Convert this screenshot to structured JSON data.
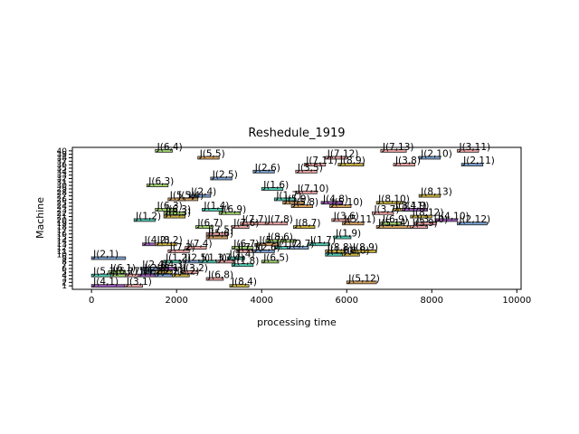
{
  "chart_data": {
    "type": "gantt",
    "title": "Reshedule_1919",
    "xlabel": "processing time",
    "ylabel": "Machine",
    "xlim": [
      -450,
      10100
    ],
    "ylim": [
      0,
      41
    ],
    "xticks": [
      0,
      2000,
      4000,
      6000,
      8000,
      10000
    ],
    "xtick_labels": [
      "0",
      "2000",
      "4000",
      "6000",
      "8000",
      "10000"
    ],
    "yticks": [
      1,
      2,
      3,
      4,
      5,
      6,
      7,
      8,
      9,
      10,
      11,
      12,
      13,
      14,
      15,
      16,
      17,
      18,
      19,
      20,
      21,
      22,
      23,
      24,
      25,
      26,
      27,
      28,
      29,
      30,
      31,
      32,
      33,
      34,
      35,
      36,
      37,
      38,
      39,
      40
    ],
    "ytick_labels": [
      "1",
      "2",
      "3",
      "4",
      "5",
      "6",
      "7",
      "8",
      "9",
      "10",
      "11",
      "12",
      "13",
      "14",
      "15",
      "16",
      "17",
      "18",
      "19",
      "20",
      "21",
      "22",
      "23",
      "24",
      "25",
      "26",
      "27",
      "28",
      "29",
      "30",
      "31",
      "32",
      "33",
      "34",
      "35",
      "36",
      "37",
      "38",
      "39",
      "40"
    ],
    "grid": false,
    "tasks": [
      {
        "label": "J(4,1)",
        "machine": 1,
        "start": 0,
        "end": 780,
        "color": "#9b59b6"
      },
      {
        "label": "J(3,1)",
        "machine": 1,
        "start": 780,
        "end": 1200,
        "color": "#e8a0a0"
      },
      {
        "label": "J(8,4)",
        "machine": 1,
        "start": 3250,
        "end": 3700,
        "color": "#c8b040"
      },
      {
        "label": "J(5,12)",
        "machine": 2,
        "start": 6000,
        "end": 6700,
        "color": "#d4a060"
      },
      {
        "label": "J(6,8)",
        "machine": 3,
        "start": 2700,
        "end": 3100,
        "color": "#e8a0a0"
      },
      {
        "label": "J(5,1)",
        "machine": 4,
        "start": 0,
        "end": 450,
        "color": "#50c8b0"
      },
      {
        "label": "J(6,2)",
        "machine": 4,
        "start": 450,
        "end": 800,
        "color": "#a0d070"
      },
      {
        "label": "J(7,1)",
        "machine": 4,
        "start": 800,
        "end": 1100,
        "color": "#e8a0a0"
      },
      {
        "label": "J(4,2)",
        "machine": 4,
        "start": 1100,
        "end": 1500,
        "color": "#9b59b6"
      },
      {
        "label": "J(2,2)",
        "machine": 4,
        "start": 1500,
        "end": 1900,
        "color": "#7aa0d0"
      },
      {
        "label": "J(8,2)",
        "machine": 4,
        "start": 1900,
        "end": 2300,
        "color": "#c8b040"
      },
      {
        "label": "J(6,1)",
        "machine": 5,
        "start": 400,
        "end": 800,
        "color": "#a0d070"
      },
      {
        "label": "J(2,3)",
        "machine": 5,
        "start": 1200,
        "end": 1600,
        "color": "#7aa0d0"
      },
      {
        "label": "J(8,1)",
        "machine": 5,
        "start": 1500,
        "end": 1900,
        "color": "#c8b040"
      },
      {
        "label": "J(3,2)",
        "machine": 5,
        "start": 2100,
        "end": 2500,
        "color": "#e8a0a0"
      },
      {
        "label": "J(2,4)",
        "machine": 6,
        "start": 1150,
        "end": 1550,
        "color": "#7aa0d0"
      },
      {
        "label": "J(4,3)",
        "machine": 6,
        "start": 1600,
        "end": 2000,
        "color": "#9b59b6"
      },
      {
        "label": "J(1,8)",
        "machine": 7,
        "start": 3300,
        "end": 3800,
        "color": "#50c8b0"
      },
      {
        "label": "J(1,2)",
        "machine": 8,
        "start": 1700,
        "end": 2100,
        "color": "#50c8b0"
      },
      {
        "label": "J(2,5)",
        "machine": 8,
        "start": 2150,
        "end": 2550,
        "color": "#7aa0d0"
      },
      {
        "label": "J(1,3)",
        "machine": 8,
        "start": 2550,
        "end": 2950,
        "color": "#50c8b0"
      },
      {
        "label": "J(7,4)",
        "machine": 8,
        "start": 2950,
        "end": 3350,
        "color": "#e8a0a0"
      },
      {
        "label": "J(6,5)",
        "machine": 8,
        "start": 4000,
        "end": 4400,
        "color": "#a0d070"
      },
      {
        "label": "J(2,1)",
        "machine": 9,
        "start": 0,
        "end": 800,
        "color": "#7aa0d0"
      },
      {
        "label": "J(1,4)",
        "machine": 9,
        "start": 3200,
        "end": 3600,
        "color": "#50c8b0"
      },
      {
        "label": "J(1,6)",
        "machine": 10,
        "start": 5500,
        "end": 5900,
        "color": "#50c8b0"
      },
      {
        "label": "J(8,8)",
        "machine": 10,
        "start": 5900,
        "end": 6300,
        "color": "#c8b040"
      },
      {
        "label": "J(7,2)",
        "machine": 11,
        "start": 1800,
        "end": 2300,
        "color": "#e8a0a0"
      },
      {
        "label": "J(7,5)",
        "machine": 11,
        "start": 3400,
        "end": 3800,
        "color": "#e8a0a0"
      },
      {
        "label": "J(2,6)",
        "machine": 11,
        "start": 3800,
        "end": 4300,
        "color": "#7aa0d0"
      },
      {
        "label": "J(8,8)",
        "machine": 11,
        "start": 5500,
        "end": 5950,
        "color": "#c8b040"
      },
      {
        "label": "J(8,9)",
        "machine": 11,
        "start": 6100,
        "end": 6700,
        "color": "#c8b040"
      },
      {
        "label": "J(7,4)",
        "machine": 12,
        "start": 2200,
        "end": 2700,
        "color": "#e8a0a0"
      },
      {
        "label": "J(6,7)",
        "machine": 12,
        "start": 3300,
        "end": 3800,
        "color": "#a0d070"
      },
      {
        "label": "J(1,7)",
        "machine": 12,
        "start": 4300,
        "end": 4800,
        "color": "#50c8b0"
      },
      {
        "label": "J(2,7)",
        "machine": 12,
        "start": 4600,
        "end": 5100,
        "color": "#7aa0d0"
      },
      {
        "label": "J(4,2)",
        "machine": 13,
        "start": 1200,
        "end": 1700,
        "color": "#9b59b6"
      },
      {
        "label": "J(8,2)",
        "machine": 13,
        "start": 1500,
        "end": 2000,
        "color": "#c8b040"
      },
      {
        "label": "J(5,7)",
        "machine": 13,
        "start": 3900,
        "end": 4400,
        "color": "#d4a060"
      },
      {
        "label": "J(1,7)",
        "machine": 13,
        "start": 5100,
        "end": 5600,
        "color": "#50c8b0"
      },
      {
        "label": "J(8,6)",
        "machine": 14,
        "start": 4100,
        "end": 4800,
        "color": "#a0d070"
      },
      {
        "label": "J(5,6)",
        "machine": 15,
        "start": 2700,
        "end": 3200,
        "color": "#d4a060"
      },
      {
        "label": "J(1,9)",
        "machine": 15,
        "start": 5700,
        "end": 6100,
        "color": "#50c8b0"
      },
      {
        "label": "J(7,5)",
        "machine": 16,
        "start": 2700,
        "end": 3200,
        "color": "#e8a0a0"
      },
      {
        "label": "J(6,7)",
        "machine": 18,
        "start": 2450,
        "end": 2850,
        "color": "#a0d070"
      },
      {
        "label": "J(7,6)",
        "machine": 18,
        "start": 3300,
        "end": 3700,
        "color": "#e8a0a0"
      },
      {
        "label": "J(8,7)",
        "machine": 18,
        "start": 4750,
        "end": 5250,
        "color": "#c8b040"
      },
      {
        "label": "J(5,14)",
        "machine": 18,
        "start": 6700,
        "end": 7500,
        "color": "#d4a060"
      },
      {
        "label": "J(3,9)",
        "machine": 18,
        "start": 7500,
        "end": 7900,
        "color": "#e8a0a0"
      },
      {
        "label": "J(7,7)",
        "machine": 19,
        "start": 3500,
        "end": 4100,
        "color": "#e8a0a0"
      },
      {
        "label": "J(7,8)",
        "machine": 19,
        "start": 4100,
        "end": 4600,
        "color": "#e8a0a0"
      },
      {
        "label": "J(5,11)",
        "machine": 19,
        "start": 5900,
        "end": 6400,
        "color": "#d4a060"
      },
      {
        "label": "J(6,9)",
        "machine": 19,
        "start": 6800,
        "end": 7300,
        "color": "#a0d070"
      },
      {
        "label": "J(3,10)",
        "machine": 19,
        "start": 7600,
        "end": 8100,
        "color": "#e8a0a0"
      },
      {
        "label": "J(2,12)",
        "machine": 19,
        "start": 8600,
        "end": 9300,
        "color": "#7aa0d0"
      },
      {
        "label": "J(1,2)",
        "machine": 20,
        "start": 1000,
        "end": 1500,
        "color": "#50c8b0"
      },
      {
        "label": "J(3,6)",
        "machine": 20,
        "start": 5650,
        "end": 6100,
        "color": "#e8a0a0"
      },
      {
        "label": "J(4,10)",
        "machine": 20,
        "start": 8100,
        "end": 8600,
        "color": "#9b59b6"
      },
      {
        "label": "J(8,3)",
        "machine": 21,
        "start": 1700,
        "end": 2200,
        "color": "#c8b040"
      },
      {
        "label": "J(8,12)",
        "machine": 21,
        "start": 7500,
        "end": 8000,
        "color": "#c8b040"
      },
      {
        "label": "J(6,3)",
        "machine": 22,
        "start": 1700,
        "end": 2200,
        "color": "#a0d070"
      },
      {
        "label": "J(6,9)",
        "machine": 22,
        "start": 3000,
        "end": 3500,
        "color": "#a0d070"
      },
      {
        "label": "J(3,7)",
        "machine": 22,
        "start": 6600,
        "end": 7100,
        "color": "#e8a0a0"
      },
      {
        "label": "J(6,3)",
        "machine": 23,
        "start": 1500,
        "end": 2000,
        "color": "#a0d070"
      },
      {
        "label": "J(1,4)",
        "machine": 23,
        "start": 2600,
        "end": 3100,
        "color": "#50c8b0"
      },
      {
        "label": "J(8,11)",
        "machine": 23,
        "start": 7100,
        "end": 7600,
        "color": "#c8b040"
      },
      {
        "label": "J(4,9)",
        "machine": 23,
        "start": 7300,
        "end": 7900,
        "color": "#9b59b6"
      },
      {
        "label": "J(5,8)",
        "machine": 24,
        "start": 4700,
        "end": 5200,
        "color": "#d4a060"
      },
      {
        "label": "J(5,10)",
        "machine": 24,
        "start": 5600,
        "end": 6100,
        "color": "#d4a060"
      },
      {
        "label": "J(5,9)",
        "machine": 25,
        "start": 4500,
        "end": 5000,
        "color": "#d4a060"
      },
      {
        "label": "J(4,8)",
        "machine": 25,
        "start": 5400,
        "end": 5900,
        "color": "#9b59b6"
      },
      {
        "label": "J(8,10)",
        "machine": 25,
        "start": 6700,
        "end": 7300,
        "color": "#c8b040"
      },
      {
        "label": "J(5,4)",
        "machine": 26,
        "start": 2000,
        "end": 2500,
        "color": "#d4a060"
      },
      {
        "label": "J(5,3)",
        "machine": 26,
        "start": 1800,
        "end": 2200,
        "color": "#d4a060"
      },
      {
        "label": "J(1,7)",
        "machine": 26,
        "start": 4300,
        "end": 4800,
        "color": "#50c8b0"
      },
      {
        "label": "J(2,4)",
        "machine": 27,
        "start": 2300,
        "end": 2800,
        "color": "#7aa0d0"
      },
      {
        "label": "J(8,13)",
        "machine": 27,
        "start": 7700,
        "end": 8200,
        "color": "#c8b040"
      },
      {
        "label": "J(7,10)",
        "machine": 28,
        "start": 4800,
        "end": 5300,
        "color": "#e8a0a0"
      },
      {
        "label": "J(1,6)",
        "machine": 29,
        "start": 4000,
        "end": 4500,
        "color": "#50c8b0"
      },
      {
        "label": "J(6,3)",
        "machine": 30,
        "start": 1300,
        "end": 1800,
        "color": "#a0d070"
      },
      {
        "label": "J(2,5)",
        "machine": 32,
        "start": 2800,
        "end": 3300,
        "color": "#7aa0d0"
      },
      {
        "label": "J(2,6)",
        "machine": 34,
        "start": 3800,
        "end": 4300,
        "color": "#7aa0d0"
      },
      {
        "label": "J(3,5)",
        "machine": 34,
        "start": 4800,
        "end": 5300,
        "color": "#e8a0a0"
      },
      {
        "label": "J(7,11)",
        "machine": 36,
        "start": 5000,
        "end": 5500,
        "color": "#e8a0a0"
      },
      {
        "label": "J(8,9)",
        "machine": 36,
        "start": 5800,
        "end": 6400,
        "color": "#c8b040"
      },
      {
        "label": "J(3,8)",
        "machine": 36,
        "start": 7100,
        "end": 7600,
        "color": "#e8a0a0"
      },
      {
        "label": "J(2,11)",
        "machine": 36,
        "start": 8700,
        "end": 9200,
        "color": "#7aa0d0"
      },
      {
        "label": "J(5,5)",
        "machine": 38,
        "start": 2500,
        "end": 3000,
        "color": "#d4a060"
      },
      {
        "label": "J(7,12)",
        "machine": 38,
        "start": 5500,
        "end": 6000,
        "color": "#e8a0a0"
      },
      {
        "label": "J(2,10)",
        "machine": 38,
        "start": 7700,
        "end": 8200,
        "color": "#7aa0d0"
      },
      {
        "label": "J(6,4)",
        "machine": 40,
        "start": 1500,
        "end": 1900,
        "color": "#a0d070"
      },
      {
        "label": "J(7,13)",
        "machine": 40,
        "start": 6800,
        "end": 7400,
        "color": "#e8a0a0"
      },
      {
        "label": "J(3,11)",
        "machine": 40,
        "start": 8600,
        "end": 9100,
        "color": "#e8a0a0"
      }
    ]
  }
}
